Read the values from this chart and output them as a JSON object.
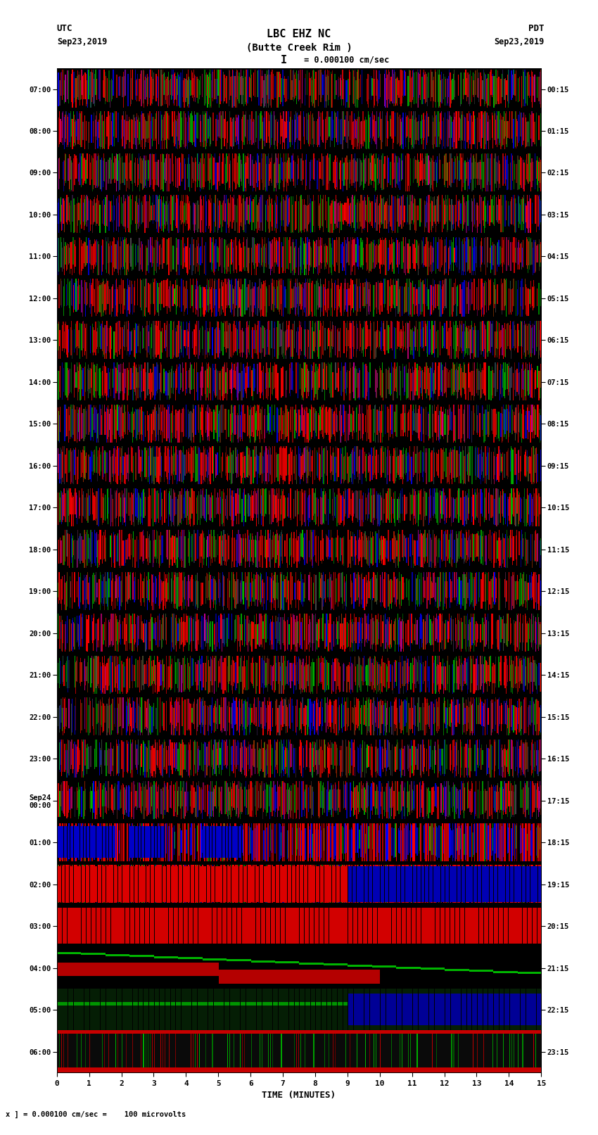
{
  "title_line1": "LBC EHZ NC",
  "title_line2": "(Butte Creek Rim )",
  "scale_text": " = 0.000100 cm/sec",
  "utc_label": "UTC",
  "utc_date": "Sep23,2019",
  "pdt_label": "PDT",
  "pdt_date": "Sep23,2019",
  "xlabel": "TIME (MINUTES)",
  "bottom_note": "x ] = 0.000100 cm/sec =    100 microvolts",
  "left_ticks": [
    "07:00",
    "08:00",
    "09:00",
    "10:00",
    "11:00",
    "12:00",
    "13:00",
    "14:00",
    "15:00",
    "16:00",
    "17:00",
    "18:00",
    "19:00",
    "20:00",
    "21:00",
    "22:00",
    "23:00",
    "Sep24\n00:00",
    "01:00",
    "02:00",
    "03:00",
    "04:00",
    "05:00",
    "06:00"
  ],
  "right_ticks": [
    "00:15",
    "01:15",
    "02:15",
    "03:15",
    "04:15",
    "05:15",
    "06:15",
    "07:15",
    "08:15",
    "09:15",
    "10:15",
    "11:15",
    "12:15",
    "13:15",
    "14:15",
    "15:15",
    "16:15",
    "17:15",
    "18:15",
    "19:15",
    "20:15",
    "21:15",
    "22:15",
    "23:15"
  ],
  "num_rows": 24,
  "num_cols": 1800,
  "time_min": 0,
  "time_max": 15,
  "bg_color": "#ffffff",
  "seed": 12345
}
